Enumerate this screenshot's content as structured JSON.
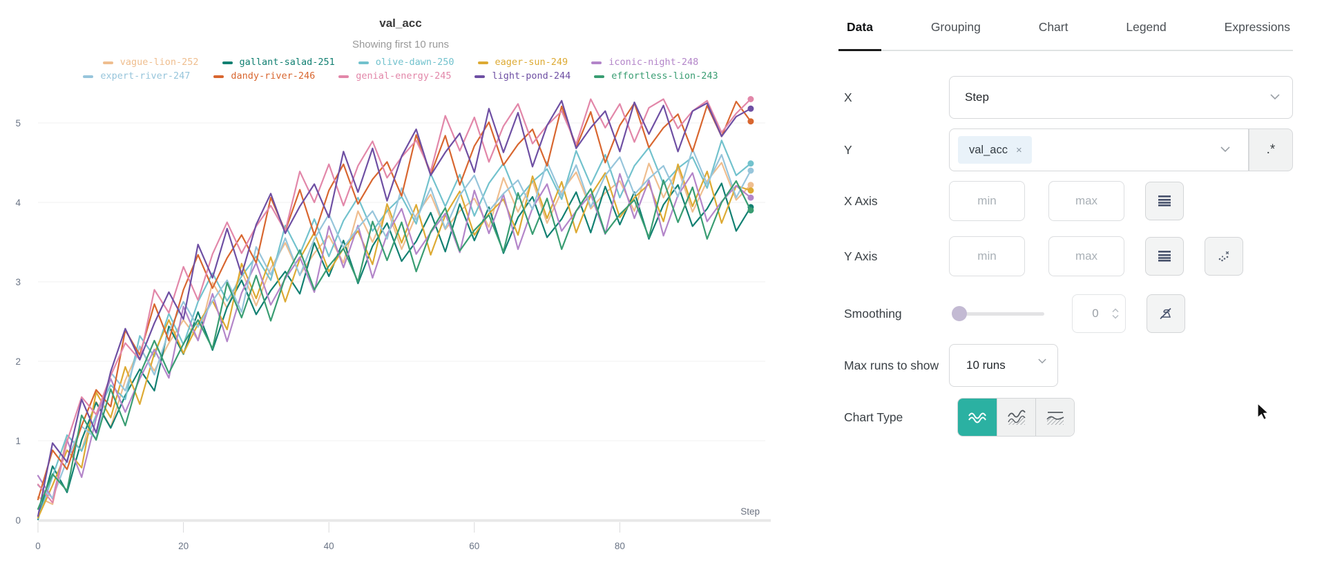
{
  "colors": {
    "accent_teal": "#2bb1a2",
    "tag_bg": "#e9f2f9",
    "axis_text": "#6a7485",
    "grid_line": "#f0f0f2",
    "axis_line": "#e8e8e8"
  },
  "chart": {
    "title": "val_acc",
    "subtitle": "Showing first 10 runs"
  },
  "chart_data": {
    "type": "line",
    "title": "val_acc",
    "xlabel": "Step",
    "ylabel": "",
    "x_ticks": [
      0,
      20,
      40,
      60,
      80
    ],
    "y_ticks": [
      0,
      1,
      2,
      3,
      4,
      5
    ],
    "x_range": [
      0,
      100
    ],
    "ylim": [
      -0.15,
      5.45
    ],
    "x_step": 2,
    "grid": "horizontal",
    "legend_position": "top",
    "series": [
      {
        "name": "vague-lion-252",
        "color": "#efbe8f",
        "values": [
          0.29,
          0.2,
          1.07,
          0.88,
          1.49,
          1.17,
          1.76,
          2.17,
          1.88,
          2.23,
          2.52,
          2.27,
          2.99,
          2.67,
          3.14,
          2.7,
          3.17,
          3.49,
          3.09,
          3.36,
          3.58,
          3.24,
          3.89,
          3.5,
          3.92,
          3.41,
          3.84,
          4.1,
          3.66,
          3.89,
          4.05,
          3.69,
          4.31,
          3.88,
          4.27,
          3.74,
          4.14,
          4.38,
          3.92,
          4.12,
          4.27,
          3.89,
          4.49,
          4.06,
          4.43,
          3.88,
          4.27,
          4.5,
          4.03,
          4.22
        ]
      },
      {
        "name": "gallant-salad-251",
        "color": "#128072",
        "values": [
          0.01,
          0.68,
          0.35,
          1.01,
          1.48,
          1.16,
          1.57,
          1.9,
          1.63,
          2.44,
          2.09,
          2.62,
          2.14,
          2.68,
          3.02,
          2.59,
          2.89,
          3.13,
          2.85,
          3.49,
          3.07,
          3.52,
          2.98,
          3.45,
          3.74,
          3.26,
          3.51,
          3.87,
          3.38,
          3.98,
          3.52,
          3.94,
          3.36,
          3.81,
          4.07,
          3.56,
          3.79,
          4.13,
          3.62,
          4.2,
          3.72,
          4.13,
          3.54,
          3.97,
          4.22,
          3.7,
          3.92,
          4.24,
          3.64,
          3.94
        ]
      },
      {
        "name": "olive-dawn-250",
        "color": "#72c2cd",
        "values": [
          0.02,
          0.55,
          1.07,
          0.87,
          1.32,
          1.7,
          1.52,
          2.32,
          2.06,
          2.6,
          2.21,
          2.75,
          3.11,
          2.76,
          3.07,
          3.32,
          3.02,
          3.71,
          3.35,
          3.79,
          3.32,
          3.77,
          4.06,
          3.64,
          3.89,
          4.07,
          3.73,
          4.36,
          3.95,
          4.35,
          3.83,
          4.24,
          4.49,
          4.04,
          4.26,
          4.42,
          4.04,
          4.65,
          4.22,
          4.6,
          4.06,
          4.46,
          4.69,
          4.23,
          4.43,
          4.57,
          4.18,
          4.78,
          4.34,
          4.49
        ]
      },
      {
        "name": "eager-sun-249",
        "color": "#ddaa33",
        "values": [
          0.03,
          0.44,
          0.88,
          0.66,
          1.61,
          1.29,
          1.93,
          1.46,
          2.1,
          2.52,
          2.1,
          2.47,
          2.76,
          2.4,
          3.23,
          2.79,
          3.31,
          2.75,
          3.29,
          3.62,
          3.13,
          3.42,
          3.64,
          3.22,
          3.98,
          3.49,
          3.97,
          3.34,
          3.84,
          4.14,
          3.59,
          3.86,
          4.04,
          3.59,
          4.33,
          3.8,
          4.26,
          3.62,
          4.09,
          4.37,
          3.81,
          4.06,
          4.23,
          3.76,
          4.48,
          3.95,
          4.39,
          3.74,
          4.21,
          4.15
        ]
      },
      {
        "name": "iconic-night-248",
        "color": "#b385c9",
        "values": [
          0.56,
          0.27,
          1.01,
          0.54,
          1.28,
          1.78,
          1.36,
          1.78,
          2.15,
          1.79,
          2.69,
          2.26,
          2.85,
          2.25,
          2.86,
          3.24,
          2.71,
          3.04,
          3.31,
          2.87,
          3.7,
          3.18,
          3.71,
          3.05,
          3.6,
          3.92,
          3.35,
          3.62,
          3.86,
          3.37,
          4.15,
          3.61,
          4.1,
          3.41,
          3.93,
          4.23,
          3.64,
          3.89,
          4.1,
          3.6,
          4.36,
          3.8,
          4.28,
          3.58,
          4.09,
          4.37,
          3.76,
          4.01,
          4.21,
          4.06
        ]
      },
      {
        "name": "expert-river-247",
        "color": "#97c5db",
        "values": [
          0.44,
          0.28,
          0.76,
          1.18,
          1.03,
          1.86,
          1.63,
          2.19,
          1.83,
          2.38,
          2.75,
          2.43,
          2.76,
          3.02,
          2.62,
          3.44,
          3.09,
          3.55,
          3.08,
          3.54,
          3.85,
          3.43,
          3.68,
          3.89,
          3.54,
          4.18,
          3.78,
          4.18,
          3.67,
          4.09,
          4.34,
          3.89,
          4.11,
          4.28,
          3.91,
          4.51,
          4.09,
          4.47,
          3.94,
          4.34,
          4.57,
          4.1,
          4.3,
          4.46,
          4.07,
          4.67,
          4.23,
          4.6,
          4.06,
          4.4
        ]
      },
      {
        "name": "dandy-river-246",
        "color": "#d8662f",
        "values": [
          0.26,
          0.88,
          0.64,
          1.19,
          1.64,
          1.43,
          2.39,
          2.08,
          2.72,
          2.26,
          2.9,
          3.34,
          2.92,
          3.3,
          3.59,
          3.24,
          4.06,
          3.64,
          4.16,
          3.59,
          4.15,
          4.48,
          3.98,
          4.29,
          4.51,
          4.08,
          4.85,
          4.35,
          4.84,
          4.22,
          4.71,
          5.01,
          4.47,
          4.73,
          4.92,
          4.46,
          5.21,
          4.69,
          5.14,
          4.5,
          4.97,
          5.25,
          4.69,
          4.94,
          5.11,
          4.64,
          5.22,
          4.83,
          5.27,
          5.02
        ]
      },
      {
        "name": "genial-energy-245",
        "color": "#e287a9",
        "values": [
          0.45,
          0.22,
          0.99,
          1.55,
          1.33,
          1.82,
          2.23,
          2.02,
          2.9,
          2.61,
          3.19,
          2.77,
          3.35,
          3.75,
          3.36,
          3.7,
          3.96,
          3.64,
          4.39,
          4.0,
          4.48,
          3.96,
          4.46,
          4.77,
          4.31,
          4.57,
          4.78,
          4.39,
          5.09,
          4.65,
          5.07,
          4.51,
          4.96,
          5.24,
          4.74,
          4.97,
          5.15,
          4.73,
          5.3,
          4.94,
          5.24,
          4.76,
          5.19,
          5.3,
          4.93,
          5.15,
          5.28,
          4.88,
          5.12,
          5.3
        ]
      },
      {
        "name": "light-pond-244",
        "color": "#6e4fa3",
        "values": [
          0.05,
          0.97,
          0.73,
          1.52,
          1.1,
          1.87,
          2.41,
          2.02,
          2.48,
          2.87,
          2.53,
          3.47,
          3.05,
          3.67,
          3.09,
          3.72,
          4.11,
          3.61,
          3.95,
          4.23,
          3.81,
          4.64,
          4.13,
          4.68,
          4.02,
          4.58,
          4.92,
          4.34,
          4.63,
          4.87,
          4.38,
          5.18,
          4.63,
          5.13,
          4.45,
          4.97,
          5.28,
          4.68,
          4.94,
          5.15,
          4.64,
          5.26,
          4.86,
          5.22,
          4.64,
          5.15,
          5.25,
          4.83,
          5.08,
          5.18
        ]
      },
      {
        "name": "effortless-lion-243",
        "color": "#399d72",
        "values": [
          0.14,
          0.58,
          0.37,
          1.32,
          1.01,
          1.65,
          1.19,
          1.83,
          2.26,
          1.85,
          2.22,
          2.52,
          2.16,
          2.99,
          2.55,
          3.08,
          2.51,
          3.06,
          3.4,
          2.9,
          3.2,
          3.42,
          3.0,
          3.76,
          3.27,
          3.75,
          3.13,
          3.63,
          3.93,
          3.39,
          3.65,
          3.84,
          3.38,
          4.12,
          3.6,
          4.05,
          3.41,
          3.89,
          4.17,
          3.61,
          3.85,
          4.03,
          3.56,
          4.28,
          3.75,
          4.19,
          3.54,
          4.0,
          4.27,
          3.9
        ]
      }
    ]
  },
  "panel": {
    "tabs": [
      "Data",
      "Grouping",
      "Chart",
      "Legend",
      "Expressions"
    ],
    "active_tab": "Data",
    "x_row": {
      "label": "X",
      "value": "Step"
    },
    "y_row": {
      "label": "Y",
      "tags": [
        "val_acc"
      ],
      "remove_label": "×",
      "regex_label": ".*"
    },
    "x_axis_row": {
      "label": "X Axis",
      "min_placeholder": "min",
      "max_placeholder": "max"
    },
    "y_axis_row": {
      "label": "Y Axis",
      "min_placeholder": "min",
      "max_placeholder": "max"
    },
    "smoothing_row": {
      "label": "Smoothing",
      "value": "0"
    },
    "max_runs_row": {
      "label": "Max runs to show",
      "value": "10 runs"
    },
    "chart_type_row": {
      "label": "Chart Type"
    }
  }
}
